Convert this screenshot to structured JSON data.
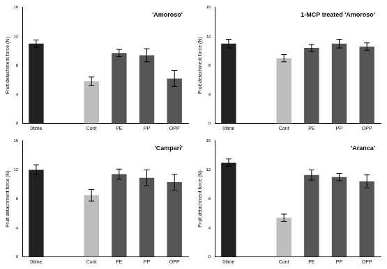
{
  "chart_data": [
    {
      "type": "bar",
      "title": "'Amoroso'",
      "y_label": "Fruit detachment force (N)",
      "categories": [
        "0time",
        null,
        "Cont",
        "PE",
        "PP",
        "OPP"
      ],
      "values": [
        11.0,
        null,
        5.8,
        9.7,
        9.4,
        6.2
      ],
      "errors": [
        0.5,
        null,
        0.6,
        0.5,
        0.9,
        1.1
      ],
      "colors": [
        "#222222",
        null,
        "#bdbdbd",
        "#555555",
        "#555555",
        "#555555"
      ],
      "ylim": [
        0,
        16
      ],
      "yticks": [
        0,
        4,
        8,
        12,
        16
      ],
      "grid": false
    },
    {
      "type": "bar",
      "title": "1-MCP treated 'Amoroso'",
      "y_label": "Fruit detachment force (N)",
      "categories": [
        "0time",
        null,
        "Cont",
        "PE",
        "PP",
        "OPP"
      ],
      "values": [
        11.0,
        null,
        9.0,
        10.4,
        11.0,
        10.6
      ],
      "errors": [
        0.6,
        null,
        0.5,
        0.5,
        0.6,
        0.5
      ],
      "colors": [
        "#222222",
        null,
        "#bdbdbd",
        "#555555",
        "#555555",
        "#555555"
      ],
      "ylim": [
        0,
        16
      ],
      "yticks": [
        0,
        4,
        8,
        12,
        16
      ],
      "grid": false
    },
    {
      "type": "bar",
      "title": "'Campari'",
      "y_label": "Fruit detachment force (N)",
      "categories": [
        "0time",
        null,
        "Cont",
        "PE",
        "PP",
        "OPP"
      ],
      "values": [
        12.0,
        null,
        8.5,
        11.4,
        10.9,
        10.3
      ],
      "errors": [
        0.7,
        null,
        0.8,
        0.7,
        1.1,
        1.1
      ],
      "colors": [
        "#222222",
        null,
        "#bdbdbd",
        "#555555",
        "#555555",
        "#555555"
      ],
      "ylim": [
        0,
        16
      ],
      "yticks": [
        0,
        4,
        8,
        12,
        16
      ],
      "grid": false
    },
    {
      "type": "bar",
      "title": "'Aranca'",
      "y_label": "Fruit detachment force (N)",
      "categories": [
        "0time",
        null,
        "Cont",
        "PE",
        "PP",
        "OPP"
      ],
      "values": [
        13.0,
        null,
        5.4,
        11.3,
        11.0,
        10.4
      ],
      "errors": [
        0.5,
        null,
        0.5,
        0.7,
        0.5,
        0.9
      ],
      "colors": [
        "#222222",
        null,
        "#bdbdbd",
        "#555555",
        "#555555",
        "#555555"
      ],
      "ylim": [
        0,
        16
      ],
      "yticks": [
        0,
        4,
        8,
        12,
        16
      ],
      "grid": false
    }
  ]
}
